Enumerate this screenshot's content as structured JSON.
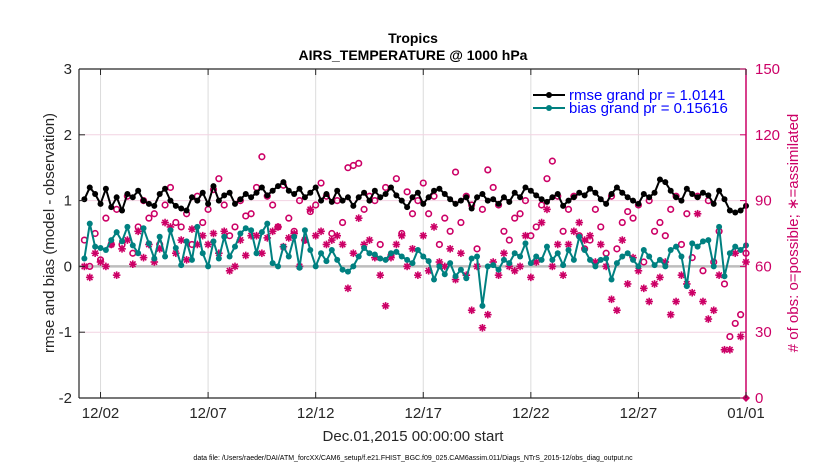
{
  "chart_data": {
    "type": "line",
    "title": "Tropics",
    "subtitle": "AIRS_TEMPERATURE @ 1000 hPa",
    "xlabel": "Dec.01,2015 00:00:00 start",
    "ylabel_left": "rmse and bias (model - observation)",
    "ylabel_right": "# of obs: o=possible; ∗=assimilated",
    "footnote": "data file: /Users/raeder/DAI/ATM_forcXX/CAM6_setup/f.e21.FHIST_BGC.f09_025.CAM6assim.011/Diags_NTrS_2015-12/obs_diag_output.nc",
    "xlim_days": [
      0,
      31
    ],
    "x_ticks": [
      {
        "day": 1,
        "label": "12/02"
      },
      {
        "day": 6,
        "label": "12/07"
      },
      {
        "day": 11,
        "label": "12/12"
      },
      {
        "day": 16,
        "label": "12/17"
      },
      {
        "day": 21,
        "label": "12/22"
      },
      {
        "day": 26,
        "label": "12/27"
      },
      {
        "day": 31,
        "label": "01/01"
      }
    ],
    "ylim_left": [
      -2,
      3
    ],
    "yticks_left": [
      -2,
      -1,
      0,
      1,
      2,
      3
    ],
    "ylim_right": [
      0,
      150
    ],
    "yticks_right": [
      0,
      30,
      60,
      90,
      120,
      150
    ],
    "grid": true,
    "legend_position": "top-right",
    "x_start_day": 0.25,
    "x_step_days": 0.25,
    "colors": {
      "rmse": "#000000",
      "bias": "#008080",
      "obs": "#cc0066",
      "legend_text": "#0000ff",
      "zero_line": "#bdbdbd",
      "grid": "#dcdcdc"
    },
    "series": [
      {
        "name": "rmse grand pr = 1.0141",
        "key": "rmse",
        "axis": "left",
        "values": [
          1.02,
          1.2,
          1.1,
          0.95,
          1.18,
          0.9,
          1.05,
          0.85,
          1.1,
          1.05,
          1.15,
          1.0,
          0.95,
          0.92,
          1.1,
          1.18,
          1.0,
          0.92,
          0.88,
          0.85,
          1.05,
          1.0,
          1.12,
          0.95,
          1.22,
          1.0,
          1.08,
          1.12,
          0.95,
          1.02,
          1.1,
          1.05,
          1.12,
          1.2,
          1.08,
          1.15,
          1.22,
          1.28,
          1.15,
          1.1,
          1.18,
          1.05,
          1.12,
          1.2,
          1.0,
          1.1,
          0.98,
          1.15,
          1.0,
          1.05,
          0.92,
          1.05,
          1.12,
          1.0,
          1.15,
          1.05,
          1.1,
          1.2,
          1.08,
          1.0,
          0.9,
          1.05,
          1.12,
          0.95,
          1.05,
          1.15,
          1.18,
          1.1,
          1.02,
          0.95,
          1.0,
          1.05,
          0.88,
          1.05,
          1.1,
          1.0,
          1.02,
          0.95,
          1.05,
          0.98,
          1.12,
          1.05,
          1.2,
          1.15,
          1.08,
          1.02,
          0.98,
          1.05,
          1.1,
          0.92,
          1.0,
          1.05,
          1.12,
          1.08,
          1.18,
          1.12,
          1.02,
          0.95,
          1.1,
          1.2,
          1.12,
          1.05,
          1.0,
          0.95,
          1.1,
          1.05,
          1.12,
          1.32,
          1.28,
          1.15,
          1.05,
          1.0,
          1.18,
          1.1,
          1.05,
          1.12,
          1.08,
          0.95,
          1.15,
          1.02,
          0.85,
          0.82,
          0.85,
          0.92
        ]
      },
      {
        "name": "bias grand pr = 0.15616",
        "key": "bias",
        "axis": "left",
        "values": [
          0.12,
          0.65,
          0.3,
          0.28,
          0.25,
          0.4,
          0.52,
          0.38,
          0.6,
          0.32,
          0.2,
          0.58,
          0.35,
          0.12,
          0.45,
          0.15,
          0.55,
          0.28,
          0.02,
          0.38,
          0.1,
          0.6,
          0.2,
          0.0,
          0.38,
          0.12,
          0.45,
          0.15,
          0.3,
          0.5,
          0.58,
          0.55,
          0.2,
          0.52,
          0.65,
          0.05,
          0.0,
          0.3,
          0.15,
          0.45,
          -0.02,
          0.55,
          0.25,
          0.0,
          0.2,
          0.08,
          0.25,
          0.1,
          -0.05,
          -0.08,
          0.0,
          0.15,
          0.28,
          0.2,
          0.18,
          0.12,
          0.1,
          0.2,
          0.22,
          0.15,
          0.1,
          0.05,
          0.25,
          0.15,
          0.08,
          -0.2,
          0.0,
          -0.12,
          0.05,
          -0.15,
          -0.05,
          -0.18,
          0.12,
          0.15,
          -0.6,
          0.0,
          0.02,
          -0.05,
          0.1,
          0.05,
          0.2,
          0.15,
          0.35,
          0.05,
          0.15,
          0.1,
          0.3,
          0.1,
          0.2,
          0.02,
          0.25,
          0.1,
          0.45,
          0.25,
          0.1,
          0.0,
          0.1,
          0.12,
          -0.2,
          0.05,
          0.15,
          0.2,
          0.1,
          0.0,
          0.25,
          0.15,
          0.02,
          0.1,
          0.0,
          0.25,
          0.3,
          0.15,
          -0.3,
          0.35,
          0.3,
          0.38,
          0.4,
          0.0,
          0.6,
          -0.15,
          0.2,
          0.3,
          0.25,
          0.32
        ]
      },
      {
        "name": "obs possible",
        "key": "possible",
        "axis": "right",
        "marker": "o",
        "values": [
          72,
          60,
          75,
          63,
          82,
          70,
          86,
          70,
          92,
          66,
          78,
          90,
          82,
          84,
          70,
          88,
          96,
          80,
          78,
          84,
          70,
          92,
          80,
          86,
          95,
          100,
          88,
          74,
          78,
          90,
          83,
          84,
          96,
          110,
          92,
          88,
          78,
          97,
          82,
          76,
          90,
          72,
          85,
          88,
          98,
          92,
          75,
          90,
          80,
          105,
          106,
          107,
          86,
          92,
          90,
          70,
          96,
          65,
          100,
          75,
          94,
          84,
          90,
          98,
          84,
          92,
          70,
          82,
          76,
          103,
          80,
          92,
          88,
          68,
          86,
          104,
          96,
          88,
          76,
          72,
          82,
          84,
          90,
          74,
          78,
          88,
          100,
          108,
          92,
          76,
          86,
          92,
          74,
          68,
          72,
          86,
          78,
          66,
          92,
          68,
          80,
          85,
          82,
          88,
          62,
          90,
          76,
          80,
          74,
          86,
          92,
          70,
          84,
          64,
          92,
          58,
          90,
          62,
          76,
          52,
          28,
          34,
          38,
          66
        ]
      },
      {
        "name": "obs assimilated",
        "key": "assimilated",
        "axis": "right",
        "marker": "*",
        "values": [
          60,
          55,
          66,
          62,
          60,
          70,
          56,
          68,
          72,
          61,
          76,
          64,
          70,
          62,
          68,
          80,
          78,
          66,
          72,
          63,
          77,
          70,
          74,
          70,
          75,
          66,
          76,
          58,
          60,
          72,
          65,
          74,
          74,
          66,
          73,
          76,
          78,
          69,
          73,
          75,
          60,
          72,
          86,
          74,
          76,
          70,
          72,
          74,
          70,
          50,
          66,
          82,
          70,
          72,
          64,
          56,
          42,
          64,
          70,
          74,
          60,
          68,
          56,
          74,
          58,
          78,
          62,
          60,
          68,
          54,
          66,
          56,
          40,
          60,
          32,
          38,
          62,
          56,
          66,
          60,
          58,
          60,
          74,
          55,
          62,
          80,
          86,
          60,
          70,
          56,
          70,
          76,
          80,
          72,
          74,
          62,
          70,
          60,
          45,
          40,
          72,
          52,
          64,
          58,
          50,
          44,
          52,
          55,
          62,
          38,
          44,
          56,
          52,
          48,
          84,
          44,
          36,
          40,
          56,
          22,
          22,
          66,
          28,
          62
        ]
      }
    ],
    "end_marker": {
      "day": 31,
      "count": 0
    }
  }
}
